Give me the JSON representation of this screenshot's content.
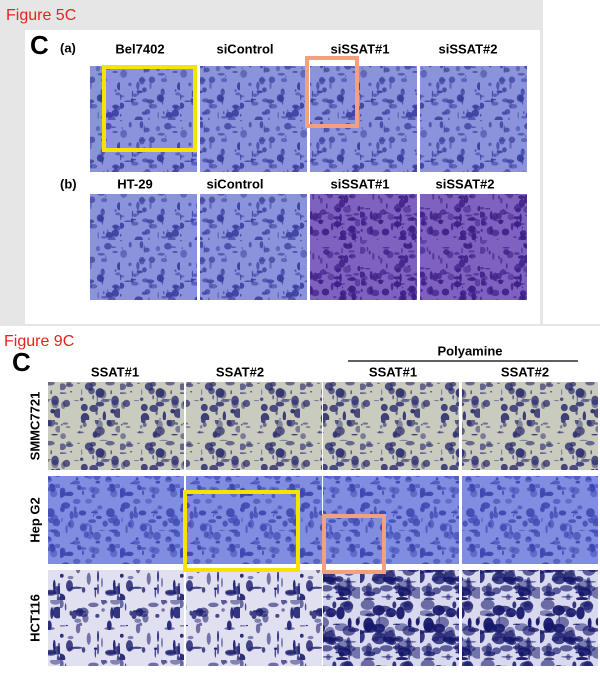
{
  "figure_5c": {
    "label": "Figure 5C",
    "panel_letter": "C",
    "rows": [
      {
        "label": "(a)",
        "columns": [
          "Bel7402",
          "siControl",
          "siSSAT#1",
          "siSSAT#2"
        ]
      },
      {
        "label": "(b)",
        "columns": [
          "HT-29",
          "siControl",
          "siSSAT#1",
          "siSSAT#2"
        ]
      }
    ]
  },
  "figure_9c": {
    "label": "Figure 9C",
    "panel_letter": "C",
    "group_label": "Polyamine",
    "columns": [
      "SSAT#1",
      "SSAT#2",
      "SSAT#1",
      "SSAT#2"
    ],
    "rows": [
      "SMMC7721",
      "Hep G2",
      "HCT116"
    ]
  }
}
